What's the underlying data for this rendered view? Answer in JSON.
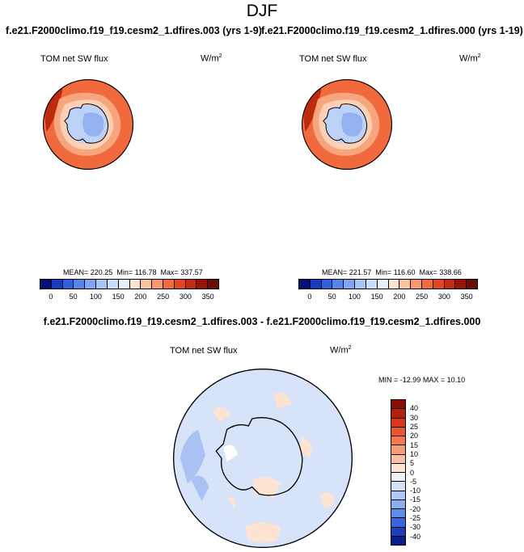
{
  "page_title": "DJF",
  "chart_data": [
    {
      "type": "heatmap",
      "projection": "south polar stereographic",
      "title": "f.e21.F2000climo.f19_f19.cesm2_1.dfires.003 (yrs 1-9)",
      "variable": "TOM net SW flux",
      "units_base": "W/m",
      "units_exp": "2",
      "stats": {
        "mean_label": "MEAN=",
        "mean": "220.25",
        "min_label": "Min=",
        "min": "116.78",
        "max_label": "Max=",
        "max": "337.57"
      },
      "colorbar": {
        "ticks": [
          "0",
          "50",
          "100",
          "150",
          "200",
          "250",
          "300",
          "350"
        ],
        "levels": [
          0,
          25,
          50,
          75,
          100,
          125,
          150,
          175,
          200,
          225,
          250,
          275,
          300,
          325,
          350
        ],
        "colors": [
          "#050f7a",
          "#1a3bc0",
          "#3160df",
          "#5585eb",
          "#7ea6f2",
          "#a8c4f7",
          "#ccdcfa",
          "#eaf0fb",
          "#fde3d3",
          "#fbc1a0",
          "#f89a6d",
          "#f26b3c",
          "#e24520",
          "#c52a12",
          "#9b1308",
          "#6b0b03"
        ]
      }
    },
    {
      "type": "heatmap",
      "projection": "south polar stereographic",
      "title": "f.e21.F2000climo.f19_f19.cesm2_1.dfires.000 (yrs 1-19)",
      "variable": "TOM net SW flux",
      "units_base": "W/m",
      "units_exp": "2",
      "stats": {
        "mean_label": "MEAN=",
        "mean": "221.57",
        "min_label": "Min=",
        "min": "116.60",
        "max_label": "Max=",
        "max": "338.66"
      },
      "colorbar": {
        "ticks": [
          "0",
          "50",
          "100",
          "150",
          "200",
          "250",
          "300",
          "350"
        ],
        "levels": [
          0,
          25,
          50,
          75,
          100,
          125,
          150,
          175,
          200,
          225,
          250,
          275,
          300,
          325,
          350
        ],
        "colors": [
          "#050f7a",
          "#1a3bc0",
          "#3160df",
          "#5585eb",
          "#7ea6f2",
          "#a8c4f7",
          "#ccdcfa",
          "#eaf0fb",
          "#fde3d3",
          "#fbc1a0",
          "#f89a6d",
          "#f26b3c",
          "#e24520",
          "#c52a12",
          "#9b1308",
          "#6b0b03"
        ]
      }
    },
    {
      "type": "heatmap",
      "projection": "south polar stereographic",
      "title": "f.e21.F2000climo.f19_f19.cesm2_1.dfires.003 - f.e21.F2000climo.f19_f19.cesm2_1.dfires.000",
      "variable": "TOM net SW flux",
      "units_base": "W/m",
      "units_exp": "2",
      "stats": {
        "min_label": "MIN =",
        "min": "-12.99",
        "max_label": "MAX =",
        "max": "10.10"
      },
      "colorbar": {
        "ticks": [
          "40",
          "30",
          "25",
          "20",
          "15",
          "10",
          "5",
          "0",
          "-5",
          "-10",
          "-15",
          "-20",
          "-25",
          "-30",
          "-40"
        ],
        "colors": [
          "#8b0c04",
          "#b3200c",
          "#d7381c",
          "#ea5530",
          "#f3784f",
          "#f89c76",
          "#fbc0a2",
          "#fde3d2",
          "#f1f1f1",
          "#d2e1fa",
          "#b0c9f6",
          "#8aaef0",
          "#5f8ce8",
          "#3666dc",
          "#1d3fbe",
          "#0a1e8c"
        ]
      }
    }
  ]
}
